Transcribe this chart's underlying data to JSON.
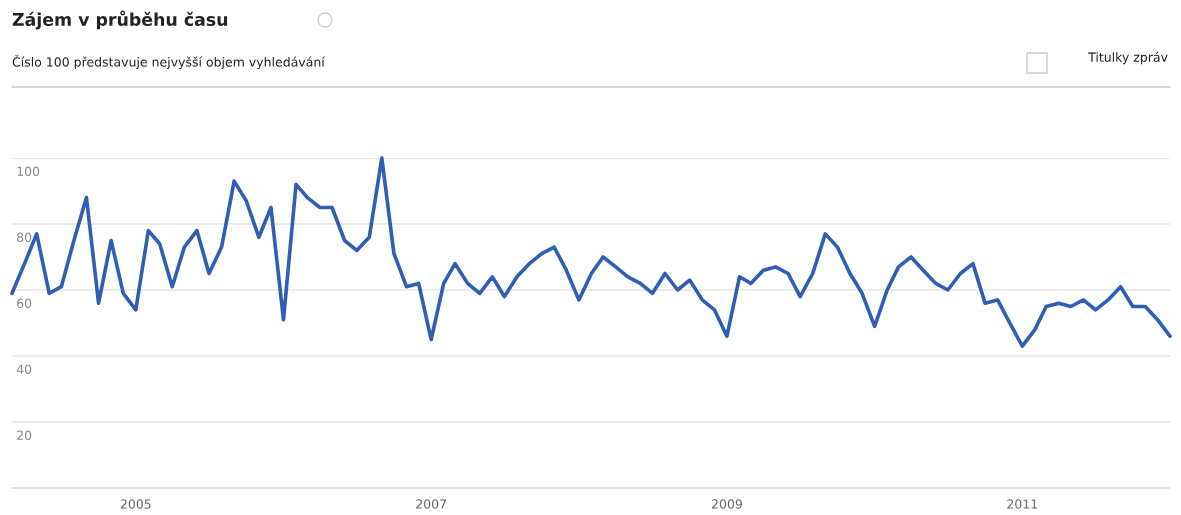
{
  "chart_data": {
    "type": "line",
    "title": "Zájem v průběhu času",
    "subtitle": "Číslo 100 představuje nejvyšší objem vyhledávání",
    "annotations": [
      "Titulky zpráv"
    ],
    "x": [
      "2004-03",
      "2004-04",
      "2004-05",
      "2004-06",
      "2004-07",
      "2004-08",
      "2004-09",
      "2004-10",
      "2004-11",
      "2004-12",
      "2005-01",
      "2005-02",
      "2005-03",
      "2005-04",
      "2005-05",
      "2005-06",
      "2005-07",
      "2005-08",
      "2005-09",
      "2005-10",
      "2005-11",
      "2005-12",
      "2006-01",
      "2006-02",
      "2006-03",
      "2006-04",
      "2006-05",
      "2006-06",
      "2006-07",
      "2006-08",
      "2006-09",
      "2006-10",
      "2006-11",
      "2006-12",
      "2007-01",
      "2007-02",
      "2007-03",
      "2007-04",
      "2007-05",
      "2007-06",
      "2007-07",
      "2007-08",
      "2007-09",
      "2007-10",
      "2007-11",
      "2007-12",
      "2008-01",
      "2008-02",
      "2008-03",
      "2008-04",
      "2008-05",
      "2008-06",
      "2008-07",
      "2008-08",
      "2008-09",
      "2008-10",
      "2008-11",
      "2008-12",
      "2009-01",
      "2009-02",
      "2009-03",
      "2009-04",
      "2009-05",
      "2009-06",
      "2009-07",
      "2009-08",
      "2009-09",
      "2009-10",
      "2009-11",
      "2009-12",
      "2010-01",
      "2010-02",
      "2010-03",
      "2010-04",
      "2010-05",
      "2010-06",
      "2010-07",
      "2010-08",
      "2010-09",
      "2010-10",
      "2010-11",
      "2010-12",
      "2011-01",
      "2011-02",
      "2011-03",
      "2011-04",
      "2011-05",
      "2011-06",
      "2011-07",
      "2011-08",
      "2011-09",
      "2011-10",
      "2011-11",
      "2011-12",
      "2012-01"
    ],
    "series": [
      {
        "color": "#2e5fb4",
        "values": [
          59,
          68,
          77,
          59,
          61,
          75,
          88,
          56,
          75,
          59,
          54,
          78,
          74,
          61,
          73,
          78,
          65,
          73,
          93,
          87,
          76,
          85,
          51,
          92,
          88,
          85,
          85,
          75,
          72,
          76,
          100,
          71,
          61,
          62,
          45,
          62,
          68,
          62,
          59,
          64,
          58,
          64,
          68,
          71,
          73,
          66,
          57,
          65,
          70,
          67,
          64,
          62,
          59,
          65,
          60,
          63,
          57,
          54,
          46,
          64,
          62,
          66,
          67,
          65,
          58,
          65,
          77,
          73,
          65,
          59,
          49,
          60,
          67,
          70,
          66,
          62,
          60,
          65,
          68,
          56,
          57,
          50,
          43,
          48,
          55,
          56,
          55,
          57,
          54,
          57,
          61,
          55,
          55,
          51,
          46
        ]
      }
    ],
    "xlim": [
      "2004-03",
      "2012-01"
    ],
    "xticks": [
      {
        "value": "2005-01",
        "label": "2005"
      },
      {
        "value": "2007-01",
        "label": "2007"
      },
      {
        "value": "2009-01",
        "label": "2009"
      },
      {
        "value": "2011-01",
        "label": "2011"
      }
    ],
    "ylim": [
      0,
      100
    ],
    "yticks": [
      20,
      40,
      60,
      80,
      100
    ],
    "grid": "y",
    "legend": false,
    "marker": "none",
    "line_style": "solid"
  }
}
